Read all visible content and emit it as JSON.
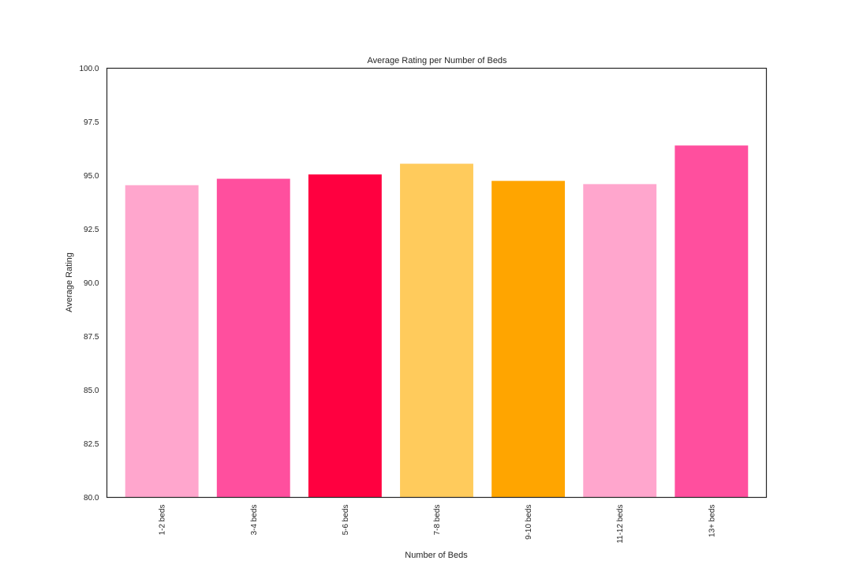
{
  "chart_data": {
    "type": "bar",
    "title": "Average Rating per Number of Beds",
    "xlabel": "Number of Beds",
    "ylabel": "Average Rating",
    "categories": [
      "1-2 beds",
      "3-4 beds",
      "5-6 beds",
      "7-8 beds",
      "9-10 beds",
      "11-12 beds",
      "13+ beds"
    ],
    "values": [
      94.55,
      94.85,
      95.05,
      95.55,
      94.75,
      94.6,
      96.4
    ],
    "colors": [
      "#ffa6cd",
      "#ff4f9e",
      "#ff0040",
      "#ffcb5c",
      "#ffa500",
      "#ffa6cd",
      "#ff4f9e"
    ],
    "ylim": [
      80,
      100
    ],
    "yticks": [
      "80.0",
      "82.5",
      "85.0",
      "87.5",
      "90.0",
      "92.5",
      "95.0",
      "97.5",
      "100.0"
    ],
    "grid": false,
    "legend": "none"
  }
}
